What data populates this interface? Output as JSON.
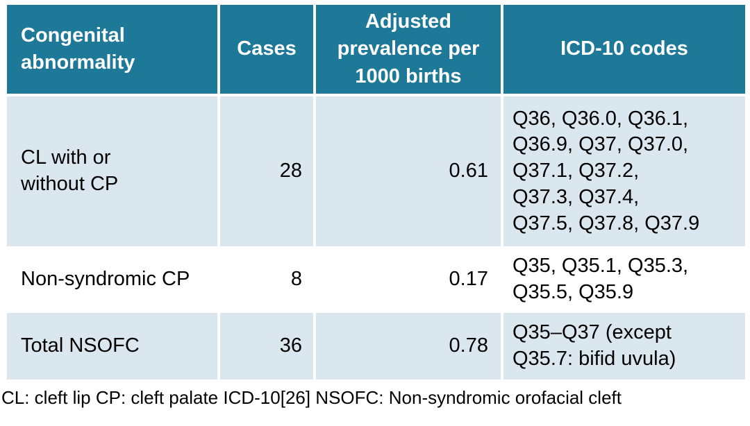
{
  "colors": {
    "header_bg": "#1e7898",
    "header_text": "#ffffff",
    "row_alt_bg": "#dbe7ef",
    "row_plain_bg": "#ffffff",
    "body_text": "#000000"
  },
  "header": {
    "abnormality": "Congenital\nabnormality",
    "cases": "Cases",
    "prevalence": "Adjusted\nprevalence per\n1000 births",
    "icd10": "ICD-10 codes"
  },
  "rows": [
    {
      "abnormality": "CL with or\nwithout CP",
      "cases": "28",
      "prevalence": "0.61",
      "icd10": "Q36, Q36.0, Q36.1,\nQ36.9, Q37, Q37.0,\nQ37.1, Q37.2,\nQ37.3, Q37.4,\nQ37.5, Q37.8, Q37.9"
    },
    {
      "abnormality": "Non-syndromic CP",
      "cases": "8",
      "prevalence": "0.17",
      "icd10": "Q35, Q35.1, Q35.3,\nQ35.5, Q35.9"
    },
    {
      "abnormality": "Total NSOFC",
      "cases": "36",
      "prevalence": "0.78",
      "icd10": "Q35–Q37 (except\nQ35.7: bifid uvula)"
    }
  ],
  "footnote": "CL: cleft lip CP: cleft palate ICD-10[26] NSOFC: Non-syndromic orofacial cleft",
  "chart_data": {
    "type": "table",
    "title": "",
    "columns": [
      "Congenital abnormality",
      "Cases",
      "Adjusted prevalence per 1000 births",
      "ICD-10 codes"
    ],
    "rows": [
      [
        "CL with or without CP",
        28,
        0.61,
        "Q36, Q36.0, Q36.1, Q36.9, Q37, Q37.0, Q37.1, Q37.2, Q37.3, Q37.4, Q37.5, Q37.8, Q37.9"
      ],
      [
        "Non-syndromic CP",
        8,
        0.17,
        "Q35, Q35.1, Q35.3, Q35.5, Q35.9"
      ],
      [
        "Total NSOFC",
        36,
        0.78,
        "Q35–Q37 (except Q35.7: bifid uvula)"
      ]
    ],
    "footnote": "CL: cleft lip CP: cleft palate ICD-10[26] NSOFC: Non-syndromic orofacial cleft"
  }
}
